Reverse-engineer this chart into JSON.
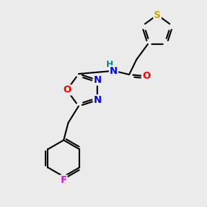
{
  "background_color": "#ebebeb",
  "atom_colors": {
    "C": "#000000",
    "N": "#0000ff",
    "O": "#ff0000",
    "S": "#ccaa00",
    "F": "#ff00ff",
    "H": "#008888"
  },
  "bond_color": "#000000",
  "bond_width": 1.6,
  "font_size": 10,
  "figsize": [
    3.0,
    3.0
  ],
  "dpi": 100
}
